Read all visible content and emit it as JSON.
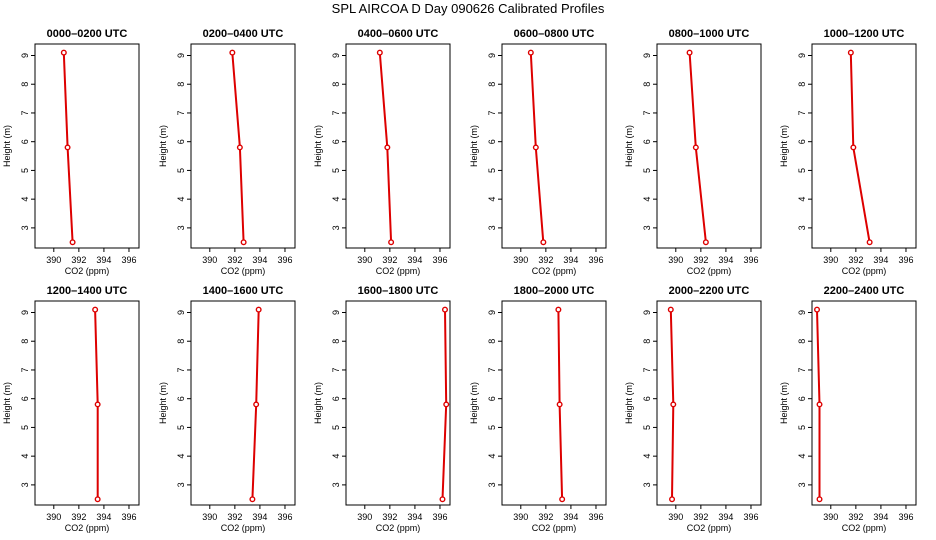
{
  "figure": {
    "title": "SPL AIRCOA D  Day 090626  Calibrated Profiles"
  },
  "style": {
    "series_color": "#dd0000",
    "axis_color": "#000000"
  },
  "chart_data": [
    {
      "type": "line",
      "title": "0000–0200 UTC",
      "xlabel": "CO2 (ppm)",
      "ylabel": "Height (m)",
      "xlim": [
        388.5,
        396.8
      ],
      "ylim": [
        2.3,
        9.4
      ],
      "x_ticks": [
        "390",
        "392",
        "394",
        "396"
      ],
      "y_ticks": [
        "3",
        "4",
        "5",
        "6",
        "7",
        "8",
        "9"
      ],
      "series": [
        {
          "points": [
            {
              "x": 390.8,
              "y": 9.1
            },
            {
              "x": 391.1,
              "y": 5.8
            },
            {
              "x": 391.5,
              "y": 2.5
            }
          ]
        }
      ]
    },
    {
      "type": "line",
      "title": "0200–0400 UTC",
      "xlabel": "CO2 (ppm)",
      "ylabel": "Height (m)",
      "xlim": [
        388.5,
        396.8
      ],
      "ylim": [
        2.3,
        9.4
      ],
      "x_ticks": [
        "390",
        "392",
        "394",
        "396"
      ],
      "y_ticks": [
        "3",
        "4",
        "5",
        "6",
        "7",
        "8",
        "9"
      ],
      "series": [
        {
          "points": [
            {
              "x": 391.8,
              "y": 9.1
            },
            {
              "x": 392.4,
              "y": 5.8
            },
            {
              "x": 392.7,
              "y": 2.5
            }
          ]
        }
      ]
    },
    {
      "type": "line",
      "title": "0400–0600 UTC",
      "xlabel": "CO2 (ppm)",
      "ylabel": "Height (m)",
      "xlim": [
        388.5,
        396.8
      ],
      "ylim": [
        2.3,
        9.4
      ],
      "x_ticks": [
        "390",
        "392",
        "394",
        "396"
      ],
      "y_ticks": [
        "3",
        "4",
        "5",
        "6",
        "7",
        "8",
        "9"
      ],
      "series": [
        {
          "points": [
            {
              "x": 391.2,
              "y": 9.1
            },
            {
              "x": 391.8,
              "y": 5.8
            },
            {
              "x": 392.1,
              "y": 2.5
            }
          ]
        }
      ]
    },
    {
      "type": "line",
      "title": "0600–0800 UTC",
      "xlabel": "CO2 (ppm)",
      "ylabel": "Height (m)",
      "xlim": [
        388.5,
        396.8
      ],
      "ylim": [
        2.3,
        9.4
      ],
      "x_ticks": [
        "390",
        "392",
        "394",
        "396"
      ],
      "y_ticks": [
        "3",
        "4",
        "5",
        "6",
        "7",
        "8",
        "9"
      ],
      "series": [
        {
          "points": [
            {
              "x": 390.8,
              "y": 9.1
            },
            {
              "x": 391.2,
              "y": 5.8
            },
            {
              "x": 391.8,
              "y": 2.5
            }
          ]
        }
      ]
    },
    {
      "type": "line",
      "title": "0800–1000 UTC",
      "xlabel": "CO2 (ppm)",
      "ylabel": "Height (m)",
      "xlim": [
        388.5,
        396.8
      ],
      "ylim": [
        2.3,
        9.4
      ],
      "x_ticks": [
        "390",
        "392",
        "394",
        "396"
      ],
      "y_ticks": [
        "3",
        "4",
        "5",
        "6",
        "7",
        "8",
        "9"
      ],
      "series": [
        {
          "points": [
            {
              "x": 391.1,
              "y": 9.1
            },
            {
              "x": 391.6,
              "y": 5.8
            },
            {
              "x": 392.4,
              "y": 2.5
            }
          ]
        }
      ]
    },
    {
      "type": "line",
      "title": "1000–1200 UTC",
      "xlabel": "CO2 (ppm)",
      "ylabel": "Height (m)",
      "xlim": [
        388.5,
        396.8
      ],
      "ylim": [
        2.3,
        9.4
      ],
      "x_ticks": [
        "390",
        "392",
        "394",
        "396"
      ],
      "y_ticks": [
        "3",
        "4",
        "5",
        "6",
        "7",
        "8",
        "9"
      ],
      "series": [
        {
          "points": [
            {
              "x": 391.6,
              "y": 9.1
            },
            {
              "x": 391.8,
              "y": 5.8
            },
            {
              "x": 393.1,
              "y": 2.5
            }
          ]
        }
      ]
    },
    {
      "type": "line",
      "title": "1200–1400 UTC",
      "xlabel": "CO2 (ppm)",
      "ylabel": "Height (m)",
      "xlim": [
        388.5,
        396.8
      ],
      "ylim": [
        2.3,
        9.4
      ],
      "x_ticks": [
        "390",
        "392",
        "394",
        "396"
      ],
      "y_ticks": [
        "3",
        "4",
        "5",
        "6",
        "7",
        "8",
        "9"
      ],
      "series": [
        {
          "points": [
            {
              "x": 393.3,
              "y": 9.1
            },
            {
              "x": 393.5,
              "y": 5.8
            },
            {
              "x": 393.5,
              "y": 2.5
            }
          ]
        }
      ]
    },
    {
      "type": "line",
      "title": "1400–1600 UTC",
      "xlabel": "CO2 (ppm)",
      "ylabel": "Height (m)",
      "xlim": [
        388.5,
        396.8
      ],
      "ylim": [
        2.3,
        9.4
      ],
      "x_ticks": [
        "390",
        "392",
        "394",
        "396"
      ],
      "y_ticks": [
        "3",
        "4",
        "5",
        "6",
        "7",
        "8",
        "9"
      ],
      "series": [
        {
          "points": [
            {
              "x": 393.9,
              "y": 9.1
            },
            {
              "x": 393.7,
              "y": 5.8
            },
            {
              "x": 393.4,
              "y": 2.5
            }
          ]
        }
      ]
    },
    {
      "type": "line",
      "title": "1600–1800 UTC",
      "xlabel": "CO2 (ppm)",
      "ylabel": "Height (m)",
      "xlim": [
        388.5,
        396.8
      ],
      "ylim": [
        2.3,
        9.4
      ],
      "x_ticks": [
        "390",
        "392",
        "394",
        "396"
      ],
      "y_ticks": [
        "3",
        "4",
        "5",
        "6",
        "7",
        "8",
        "9"
      ],
      "series": [
        {
          "points": [
            {
              "x": 396.4,
              "y": 9.1
            },
            {
              "x": 396.5,
              "y": 5.8
            },
            {
              "x": 396.2,
              "y": 2.5
            }
          ]
        }
      ]
    },
    {
      "type": "line",
      "title": "1800–2000 UTC",
      "xlabel": "CO2 (ppm)",
      "ylabel": "Height (m)",
      "xlim": [
        388.5,
        396.8
      ],
      "ylim": [
        2.3,
        9.4
      ],
      "x_ticks": [
        "390",
        "392",
        "394",
        "396"
      ],
      "y_ticks": [
        "3",
        "4",
        "5",
        "6",
        "7",
        "8",
        "9"
      ],
      "series": [
        {
          "points": [
            {
              "x": 393.0,
              "y": 9.1
            },
            {
              "x": 393.1,
              "y": 5.8
            },
            {
              "x": 393.3,
              "y": 2.5
            }
          ]
        }
      ]
    },
    {
      "type": "line",
      "title": "2000–2200 UTC",
      "xlabel": "CO2 (ppm)",
      "ylabel": "Height (m)",
      "xlim": [
        388.5,
        396.8
      ],
      "ylim": [
        2.3,
        9.4
      ],
      "x_ticks": [
        "390",
        "392",
        "394",
        "396"
      ],
      "y_ticks": [
        "3",
        "4",
        "5",
        "6",
        "7",
        "8",
        "9"
      ],
      "series": [
        {
          "points": [
            {
              "x": 389.6,
              "y": 9.1
            },
            {
              "x": 389.8,
              "y": 5.8
            },
            {
              "x": 389.7,
              "y": 2.5
            }
          ]
        }
      ]
    },
    {
      "type": "line",
      "title": "2200–2400 UTC",
      "xlabel": "CO2 (ppm)",
      "ylabel": "Height (m)",
      "xlim": [
        388.5,
        396.8
      ],
      "ylim": [
        2.3,
        9.4
      ],
      "x_ticks": [
        "390",
        "392",
        "394",
        "396"
      ],
      "y_ticks": [
        "3",
        "4",
        "5",
        "6",
        "7",
        "8",
        "9"
      ],
      "series": [
        {
          "points": [
            {
              "x": 388.9,
              "y": 9.1
            },
            {
              "x": 389.1,
              "y": 5.8
            },
            {
              "x": 389.1,
              "y": 2.5
            }
          ]
        }
      ]
    }
  ]
}
